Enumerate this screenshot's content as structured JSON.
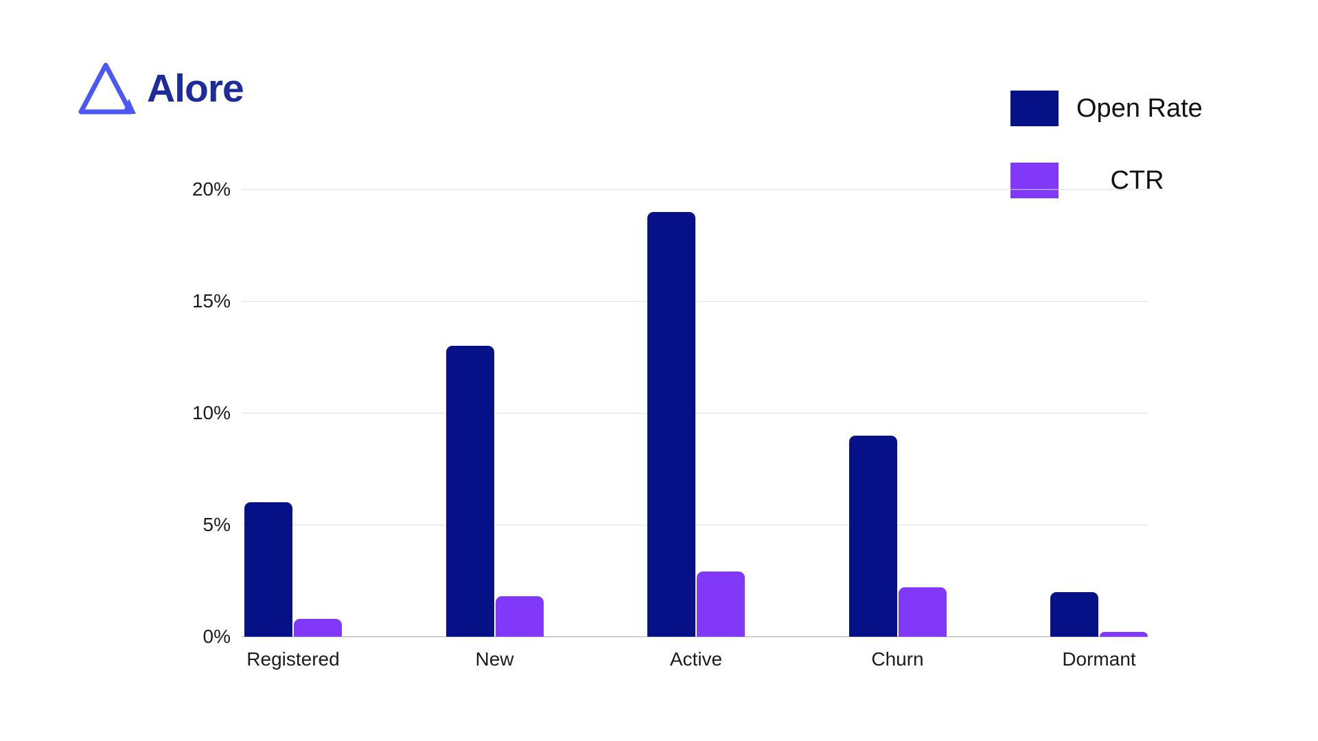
{
  "brand": {
    "name": "Alore"
  },
  "colors": {
    "open_rate": "#071187",
    "ctr": "#8138f9",
    "logo_triangle": "#4d57f2",
    "brand_text": "#1d2b9b",
    "gridline": "#dedede",
    "axis_text": "#1b1b1b"
  },
  "chart_data": {
    "type": "bar",
    "title": "",
    "xlabel": "",
    "ylabel": "",
    "categories": [
      "Registered",
      "New",
      "Active",
      "Churn",
      "Dormant"
    ],
    "series": [
      {
        "name": "Open Rate",
        "color": "#071187",
        "values": [
          6,
          13,
          19,
          9,
          2
        ]
      },
      {
        "name": "CTR",
        "color": "#8138f9",
        "values": [
          0.8,
          1.8,
          2.9,
          2.2,
          0.2
        ]
      }
    ],
    "ylim": [
      0,
      20
    ],
    "y_ticks": [
      {
        "value": 0,
        "label": "0%"
      },
      {
        "value": 5,
        "label": "5%"
      },
      {
        "value": 10,
        "label": "10%"
      },
      {
        "value": 15,
        "label": "15%"
      },
      {
        "value": 20,
        "label": "20%"
      }
    ],
    "grid": true,
    "legend_position": "top-right"
  }
}
